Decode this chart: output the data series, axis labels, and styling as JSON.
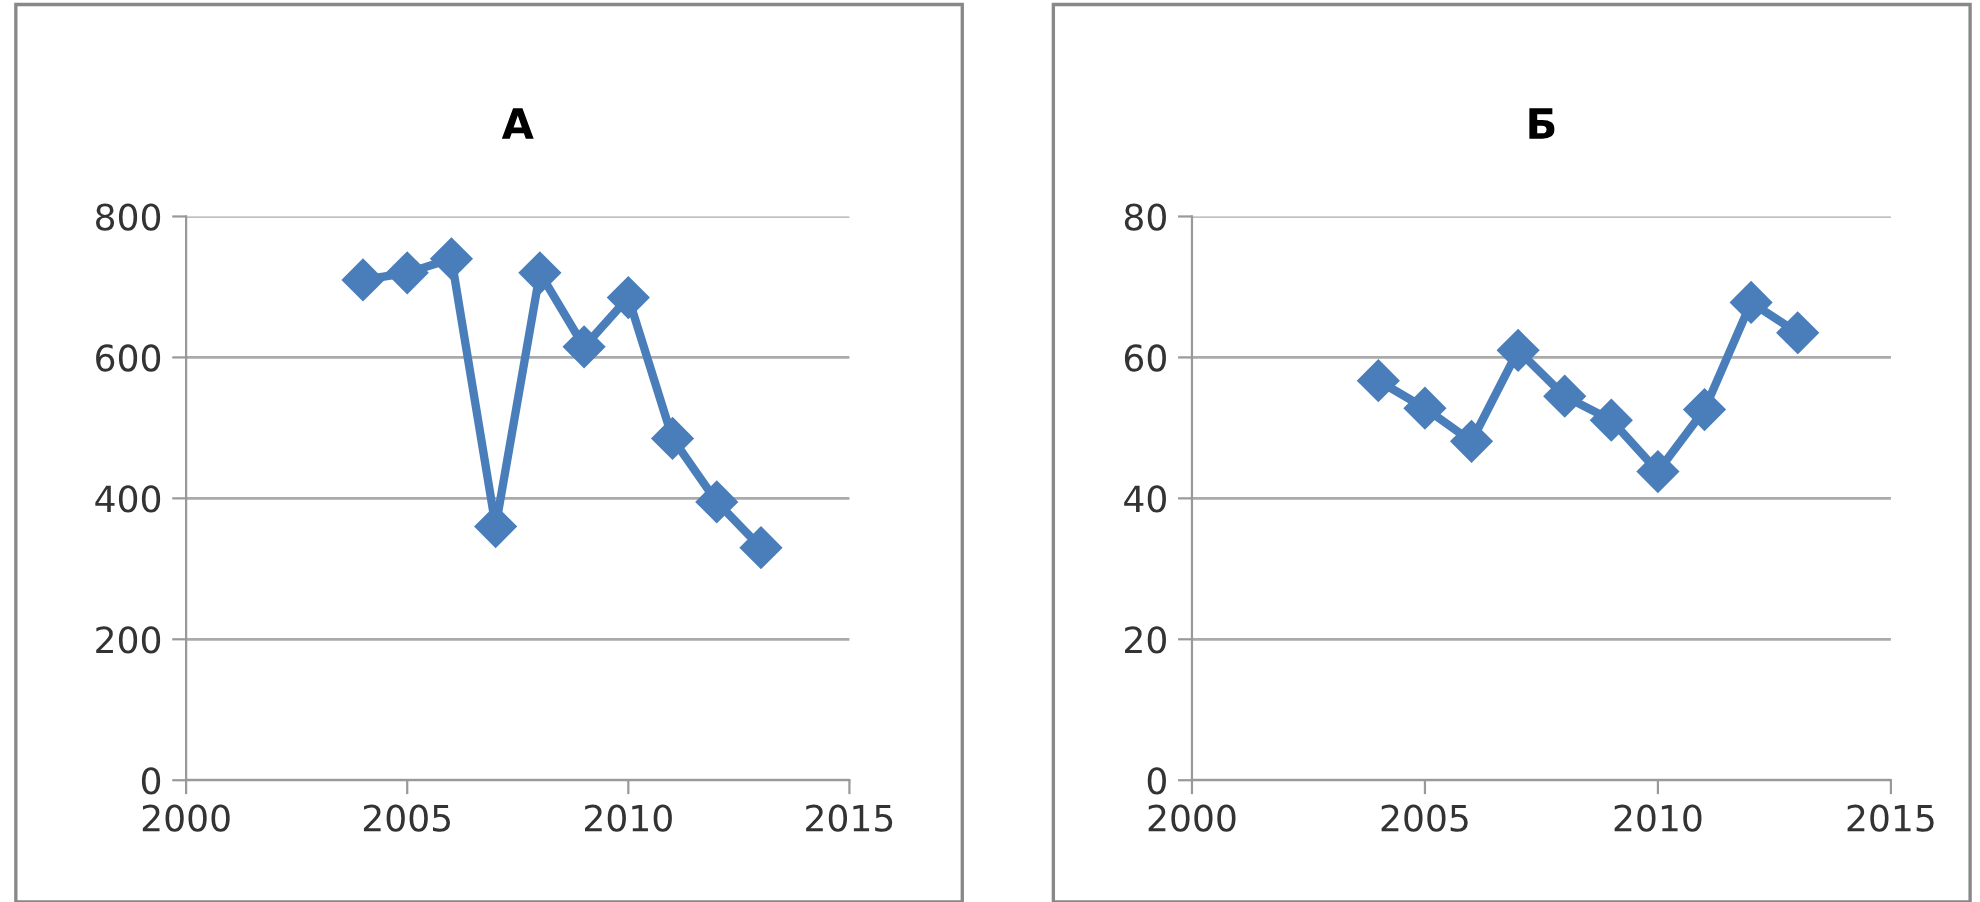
{
  "chart_data": [
    {
      "type": "line",
      "title": "А",
      "x": [
        2004,
        2005,
        2006,
        2007,
        2008,
        2009,
        2010,
        2011,
        2012,
        2013
      ],
      "series": [
        {
          "color": "#4a7ebb",
          "values": [
            710,
            720,
            740,
            360,
            720,
            615,
            685,
            485,
            395,
            330
          ]
        }
      ],
      "xlim": [
        2000,
        2015
      ],
      "xticks": [
        2000,
        2005,
        2010,
        2015
      ],
      "ylim": [
        0,
        800
      ],
      "yticks": [
        0,
        200,
        400,
        600,
        800
      ],
      "grid": "y",
      "legend": false,
      "marker": "diamond",
      "line_style": "solid"
    },
    {
      "type": "line",
      "title": "Б",
      "x": [
        2004,
        2005,
        2006,
        2007,
        2008,
        2009,
        2010,
        2011,
        2012,
        2013
      ],
      "series": [
        {
          "color": "#4a7ebb",
          "values": [
            56.7,
            52.8,
            48.1,
            61,
            54.5,
            51.1,
            43.8,
            52.6,
            67.8,
            63.5
          ]
        }
      ],
      "xlim": [
        2000,
        2015
      ],
      "xticks": [
        2000,
        2005,
        2010,
        2015
      ],
      "ylim": [
        0,
        80
      ],
      "yticks": [
        0,
        20,
        40,
        60,
        80
      ],
      "grid": "y",
      "legend": false,
      "marker": "diamond",
      "line_style": "solid"
    }
  ]
}
